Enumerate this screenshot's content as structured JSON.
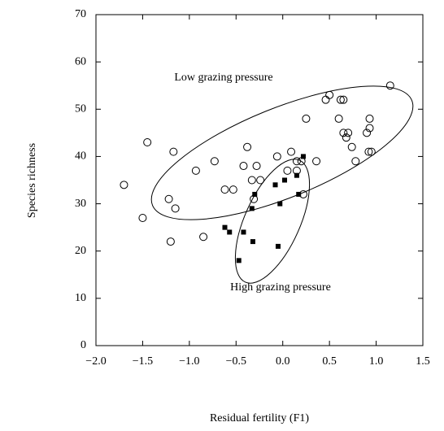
{
  "chart_data": {
    "type": "scatter",
    "xlabel": "Residual fertility (F1)",
    "ylabel": "Species richness",
    "annotations": [
      "Low grazing pressure",
      "High grazing pressure"
    ],
    "xlim": [
      -2,
      1.5
    ],
    "ylim": [
      0,
      70
    ],
    "xticks": [
      {
        "value": -2,
        "label": "−2.0"
      },
      {
        "value": -1.5,
        "label": "−1.5"
      },
      {
        "value": -1,
        "label": "−1.0"
      },
      {
        "value": -0.5,
        "label": "−0.5"
      },
      {
        "value": 0,
        "label": "0.0"
      },
      0.5,
      {
        "value": 1,
        "label": "1.0"
      },
      1.5
    ],
    "yticks": [
      0,
      10,
      20,
      30,
      40,
      50,
      60,
      70
    ],
    "series": [
      {
        "name": "Low grazing pressure",
        "marker": "open-circle",
        "color": "#000000",
        "x": [
          -1.7,
          -1.45,
          -1.5,
          -1.17,
          -1.22,
          -1.15,
          -1.2,
          -0.85,
          -0.93,
          -0.73,
          -0.62,
          -0.53,
          -0.42,
          -0.38,
          -0.33,
          -0.28,
          -0.31,
          -0.24,
          -0.06,
          0.05,
          0.09,
          0.15,
          0.2,
          0.22,
          0.15,
          0.25,
          0.36,
          0.46,
          0.5,
          0.6,
          0.65,
          0.62,
          0.65,
          0.7,
          0.68,
          0.74,
          0.78,
          0.9,
          0.95,
          0.92,
          0.93,
          0.93,
          1.15
        ],
        "y": [
          34,
          43,
          27,
          41,
          31,
          29,
          22,
          23,
          37,
          39,
          33,
          33,
          38,
          42,
          35,
          38,
          31,
          35,
          40,
          37,
          41,
          39,
          39,
          32,
          37,
          48,
          39,
          52,
          53,
          48,
          52,
          52,
          45,
          45,
          44,
          42,
          39,
          45,
          41,
          41,
          46,
          48,
          55
        ]
      },
      {
        "name": "High grazing pressure",
        "marker": "filled-square",
        "color": "#000000",
        "x": [
          -0.62,
          -0.57,
          -0.42,
          -0.47,
          -0.32,
          -0.33,
          -0.3,
          -0.08,
          0.02,
          -0.03,
          0.15,
          0.22,
          0.17,
          -0.05
        ],
        "y": [
          25,
          24,
          24,
          18,
          22,
          29,
          32,
          34,
          35,
          30,
          36,
          40,
          32,
          21
        ]
      }
    ]
  }
}
